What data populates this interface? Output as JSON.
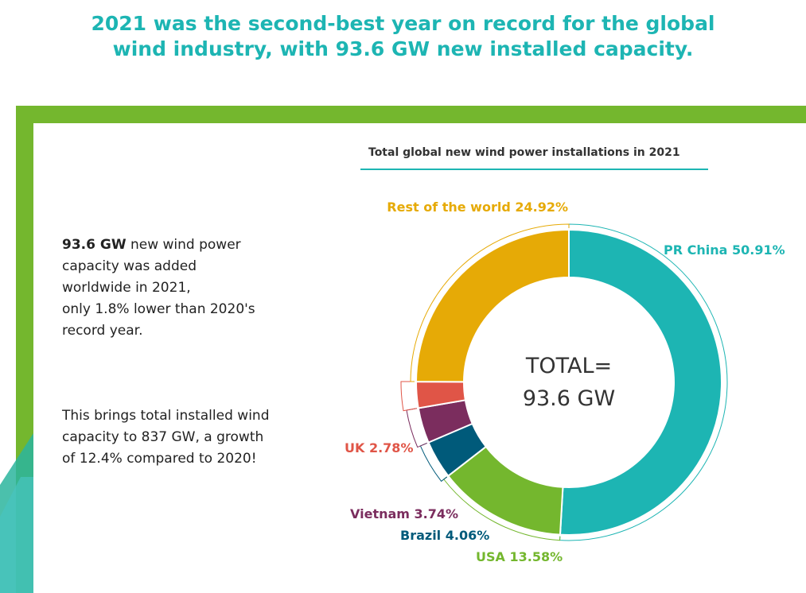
{
  "headline": {
    "line1": "2021 was the second-best year on record for the global",
    "line2": "wind industry, with 93.6 GW new installed capacity."
  },
  "text": {
    "p1_bold": "93.6 GW",
    "p1_lines": [
      " new wind power",
      "capacity was added",
      "worldwide in 2021,",
      "only 1.8% lower than 2020's",
      "record year."
    ],
    "p2_lines": [
      "This brings total installed wind",
      "capacity to 837 GW, a growth",
      "of 12.4% compared to 2020!"
    ]
  },
  "colors": {
    "teal": "#1db5b3",
    "green": "#74b72e",
    "gold": "#e6aa06",
    "red": "#e05547",
    "plum": "#7b2d5e",
    "navy": "#005a7a"
  },
  "chart_data": {
    "type": "pie",
    "donut": true,
    "title": "Total global new wind power installations in 2021",
    "center_text": [
      "TOTAL=",
      "93.6 GW"
    ],
    "slices": [
      {
        "name": "PR China",
        "value": 50.91,
        "label": "PR China 50.91%",
        "color": "#1db5b3"
      },
      {
        "name": "USA",
        "value": 13.58,
        "label": "USA 13.58%",
        "color": "#74b72e"
      },
      {
        "name": "Brazil",
        "value": 4.06,
        "label": "Brazil 4.06%",
        "color": "#005a7a"
      },
      {
        "name": "Vietnam",
        "value": 3.74,
        "label": "Vietnam 3.74%",
        "color": "#7b2d5e"
      },
      {
        "name": "UK",
        "value": 2.78,
        "label": "UK 2.78%",
        "color": "#e05547"
      },
      {
        "name": "Rest of the world",
        "value": 24.92,
        "label": "Rest of the world 24.92%",
        "color": "#e6aa06"
      }
    ]
  }
}
